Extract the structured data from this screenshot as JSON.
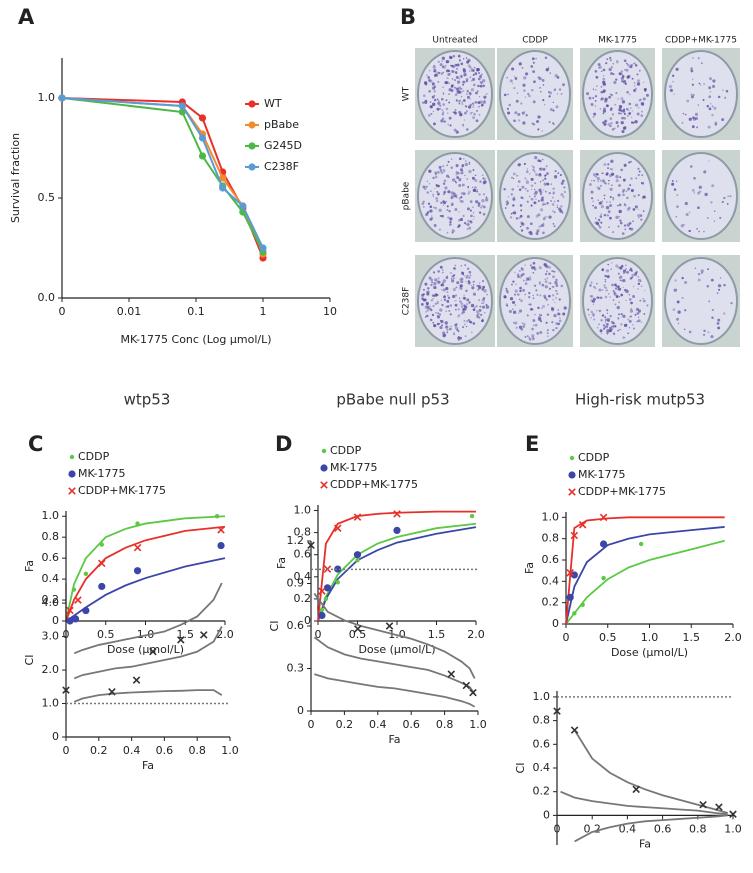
{
  "figure": {
    "panel_labels": [
      "A",
      "B",
      "C",
      "D",
      "E"
    ],
    "plates": {
      "columns": [
        "Untreated",
        "CDDP",
        "MK-1775",
        "CDDP+MK-1775"
      ],
      "rows": [
        "WT",
        "pBabe",
        "C238F"
      ]
    },
    "column_titles": [
      "wtp53",
      "pBabe null p53",
      "High-risk mutp53"
    ]
  },
  "chart_data": [
    {
      "type": "line",
      "xlabel": "MK-1775 Conc (Log μmol/L)",
      "ylabel": "Survival fraction",
      "log_x": true,
      "xlim": [
        0.001,
        10
      ],
      "ylim": [
        0,
        1.2
      ],
      "xticks": [
        {
          "value": 0.001,
          "label": "0"
        },
        0.01,
        0.1,
        1,
        10
      ],
      "yticks": [
        {
          "value": 0,
          "label": "0.0"
        },
        {
          "value": 0.5,
          "label": "0.5"
        },
        {
          "value": 1,
          "label": "1.0"
        }
      ],
      "legend": "upper right",
      "x": [
        0.001,
        0.0625,
        0.125,
        0.25,
        0.5,
        1
      ],
      "series": [
        {
          "name": "WT",
          "color": "#e8302a",
          "values": [
            1.0,
            0.98,
            0.9,
            0.63,
            0.45,
            0.2
          ]
        },
        {
          "name": "pBabe",
          "color": "#f28a30",
          "values": [
            1.0,
            0.96,
            0.82,
            0.6,
            0.46,
            0.22
          ]
        },
        {
          "name": "G245D",
          "color": "#4cb848",
          "values": [
            1.0,
            0.93,
            0.71,
            0.56,
            0.43,
            0.23
          ]
        },
        {
          "name": "C238F",
          "color": "#5b9bd5",
          "values": [
            1.0,
            0.96,
            0.8,
            0.55,
            0.46,
            0.25
          ]
        }
      ]
    },
    {
      "type": "scatter",
      "xlabel": "Dose (μmol/L)",
      "ylabel": "Fa",
      "xlim": [
        0,
        2
      ],
      "ylim": [
        0,
        1.05
      ],
      "xticks": [
        0,
        0.5,
        {
          "value": 1,
          "label": "1.0"
        },
        1.5,
        {
          "value": 2,
          "label": "2.0"
        }
      ],
      "yticks": [
        0,
        0.2,
        0.4,
        0.6,
        0.8,
        {
          "value": 1,
          "label": "1.0"
        }
      ],
      "legend": "upper left",
      "series": [
        {
          "name": "CDDP",
          "color": "#5cc843",
          "marker": "dot",
          "x": [
            0.1,
            0.25,
            0.45,
            0.9,
            1.9
          ],
          "values": [
            0.3,
            0.45,
            0.73,
            0.93,
            1.0
          ]
        },
        {
          "name": "MK-1775",
          "color": "#3b46a8",
          "marker": "circle",
          "x": [
            0.05,
            0.12,
            0.25,
            0.45,
            0.9,
            1.95
          ],
          "values": [
            0.0,
            0.02,
            0.1,
            0.33,
            0.48,
            0.72
          ]
        },
        {
          "name": "CDDP+MK-1775",
          "color": "#e8302a",
          "marker": "x",
          "x": [
            0.05,
            0.15,
            0.45,
            0.9,
            1.95
          ],
          "values": [
            0.1,
            0.2,
            0.55,
            0.7,
            0.87
          ]
        }
      ],
      "fits": [
        {
          "color": "#5cc843",
          "x": [
            0,
            0.1,
            0.25,
            0.5,
            0.75,
            1,
            1.5,
            2
          ],
          "values": [
            0,
            0.35,
            0.6,
            0.8,
            0.88,
            0.93,
            0.98,
            1.0
          ]
        },
        {
          "color": "#3b46a8",
          "x": [
            0,
            0.1,
            0.25,
            0.5,
            0.75,
            1,
            1.5,
            2
          ],
          "values": [
            0,
            0.05,
            0.13,
            0.25,
            0.34,
            0.41,
            0.52,
            0.6
          ]
        },
        {
          "color": "#e8302a",
          "x": [
            0,
            0.1,
            0.25,
            0.5,
            0.75,
            1,
            1.5,
            2
          ],
          "values": [
            0,
            0.2,
            0.4,
            0.6,
            0.7,
            0.77,
            0.86,
            0.9
          ]
        }
      ]
    },
    {
      "type": "scatter",
      "xlabel": "Fa",
      "ylabel": "CI",
      "xlim": [
        0,
        1
      ],
      "ylim": [
        0,
        4.6
      ],
      "xticks": [
        0,
        0.2,
        0.4,
        0.6,
        0.8,
        {
          "value": 1,
          "label": "1.0"
        }
      ],
      "yticks": [
        0,
        {
          "value": 1,
          "label": "1.0"
        },
        {
          "value": 2,
          "label": "2.0"
        },
        {
          "value": 3,
          "label": "3.0"
        },
        {
          "value": 4,
          "label": "4.0"
        }
      ],
      "reference_line": 1,
      "series": [
        {
          "color": "#333333",
          "marker": "x",
          "x": [
            0,
            0.28,
            0.43,
            0.53,
            0.7,
            0.84
          ],
          "values": [
            1.4,
            1.35,
            1.7,
            2.55,
            2.9,
            3.05
          ]
        }
      ],
      "fits": [
        {
          "color": "#777777",
          "x": [
            0.05,
            0.1,
            0.2,
            0.3,
            0.4,
            0.5,
            0.6,
            0.7,
            0.8,
            0.9,
            0.95
          ],
          "values": [
            2.5,
            2.6,
            2.75,
            2.85,
            2.95,
            3.05,
            3.15,
            3.35,
            3.6,
            4.1,
            4.6
          ]
        },
        {
          "color": "#777777",
          "x": [
            0.05,
            0.1,
            0.2,
            0.3,
            0.4,
            0.5,
            0.6,
            0.7,
            0.8,
            0.9,
            0.95
          ],
          "values": [
            1.75,
            1.85,
            1.95,
            2.05,
            2.1,
            2.2,
            2.3,
            2.4,
            2.55,
            2.85,
            3.3
          ]
        },
        {
          "color": "#777777",
          "x": [
            0.05,
            0.1,
            0.2,
            0.3,
            0.4,
            0.5,
            0.6,
            0.7,
            0.8,
            0.9,
            0.95
          ],
          "values": [
            1.05,
            1.15,
            1.25,
            1.3,
            1.33,
            1.35,
            1.37,
            1.38,
            1.4,
            1.4,
            1.25
          ]
        }
      ]
    },
    {
      "type": "scatter",
      "xlabel": "Dose (μmol/L)",
      "ylabel": "Fa",
      "xlim": [
        0,
        2
      ],
      "ylim": [
        0,
        1.05
      ],
      "xticks": [
        0,
        0.5,
        {
          "value": 1,
          "label": "1.0"
        },
        1.5,
        {
          "value": 2,
          "label": "2.0"
        }
      ],
      "yticks": [
        0,
        0.2,
        0.4,
        0.6,
        0.8,
        {
          "value": 1,
          "label": "1.0"
        }
      ],
      "legend": "upper left",
      "series": [
        {
          "name": "CDDP",
          "color": "#5cc843",
          "marker": "dot",
          "x": [
            0.05,
            0.1,
            0.25,
            0.5,
            1.0,
            1.95
          ],
          "values": [
            0.1,
            0.2,
            0.35,
            0.55,
            0.83,
            0.95
          ]
        },
        {
          "name": "MK-1775",
          "color": "#3b46a8",
          "marker": "circle",
          "x": [
            0.05,
            0.12,
            0.25,
            0.5,
            1.0
          ],
          "values": [
            0.05,
            0.3,
            0.47,
            0.6,
            0.82
          ]
        },
        {
          "name": "CDDP+MK-1775",
          "color": "#e8302a",
          "marker": "x",
          "x": [
            0.05,
            0.12,
            0.25,
            0.5,
            1.0
          ],
          "values": [
            0.27,
            0.47,
            0.84,
            0.94,
            0.97
          ]
        }
      ],
      "fits": [
        {
          "color": "#5cc843",
          "x": [
            0,
            0.1,
            0.25,
            0.5,
            0.75,
            1,
            1.5,
            2
          ],
          "values": [
            0,
            0.22,
            0.42,
            0.6,
            0.7,
            0.76,
            0.84,
            0.88
          ]
        },
        {
          "color": "#3b46a8",
          "x": [
            0,
            0.1,
            0.25,
            0.5,
            0.75,
            1,
            1.5,
            2
          ],
          "values": [
            0,
            0.2,
            0.38,
            0.55,
            0.64,
            0.71,
            0.79,
            0.85
          ]
        },
        {
          "color": "#e8302a",
          "x": [
            0,
            0.1,
            0.25,
            0.5,
            0.75,
            1,
            1.5,
            2
          ],
          "values": [
            0,
            0.7,
            0.88,
            0.95,
            0.97,
            0.98,
            0.99,
            0.99
          ]
        }
      ]
    },
    {
      "type": "scatter",
      "xlabel": "Fa",
      "ylabel": "CI",
      "xlim": [
        0,
        1
      ],
      "ylim": [
        0,
        1.2
      ],
      "xticks": [
        0,
        0.2,
        0.4,
        0.6,
        0.8,
        {
          "value": 1,
          "label": "1.0"
        }
      ],
      "yticks": [
        0,
        0.3,
        0.6,
        0.9,
        1.2
      ],
      "reference_line": 1,
      "series": [
        {
          "color": "#333333",
          "marker": "x",
          "x": [
            0,
            0.28,
            0.47,
            0.84,
            0.93,
            0.97
          ],
          "values": [
            1.17,
            0.58,
            0.6,
            0.26,
            0.18,
            0.13
          ]
        }
      ],
      "fits": [
        {
          "color": "#777777",
          "x": [
            0.02,
            0.1,
            0.2,
            0.3,
            0.4,
            0.5,
            0.6,
            0.7,
            0.8,
            0.9,
            0.95,
            0.98
          ],
          "values": [
            0.83,
            0.7,
            0.64,
            0.6,
            0.57,
            0.54,
            0.51,
            0.47,
            0.42,
            0.35,
            0.3,
            0.23
          ]
        },
        {
          "color": "#777777",
          "x": [
            0.02,
            0.1,
            0.2,
            0.3,
            0.4,
            0.5,
            0.6,
            0.7,
            0.8,
            0.9,
            0.95,
            0.98
          ],
          "values": [
            0.52,
            0.45,
            0.4,
            0.37,
            0.35,
            0.33,
            0.31,
            0.29,
            0.25,
            0.2,
            0.17,
            0.12
          ]
        },
        {
          "color": "#777777",
          "x": [
            0.02,
            0.1,
            0.2,
            0.3,
            0.4,
            0.5,
            0.6,
            0.7,
            0.8,
            0.9,
            0.95,
            0.98
          ],
          "values": [
            0.26,
            0.23,
            0.21,
            0.19,
            0.17,
            0.16,
            0.14,
            0.12,
            0.1,
            0.07,
            0.05,
            0.03
          ]
        }
      ]
    },
    {
      "type": "scatter",
      "xlabel": "Dose (μmol/L)",
      "ylabel": "Fa",
      "xlim": [
        0,
        2
      ],
      "ylim": [
        0,
        1.05
      ],
      "xticks": [
        0,
        0.5,
        {
          "value": 1,
          "label": "1.0"
        },
        1.5,
        {
          "value": 2,
          "label": "2.0"
        }
      ],
      "yticks": [
        0,
        0.2,
        0.4,
        0.6,
        0.8,
        {
          "value": 1,
          "label": "1.0"
        }
      ],
      "legend": "upper left",
      "series": [
        {
          "name": "CDDP",
          "color": "#5cc843",
          "marker": "dot",
          "x": [
            0.1,
            0.2,
            0.45,
            0.9
          ],
          "values": [
            0.1,
            0.18,
            0.43,
            0.75
          ]
        },
        {
          "name": "MK-1775",
          "color": "#3b46a8",
          "marker": "circle",
          "x": [
            0.05,
            0.1,
            0.45
          ],
          "values": [
            0.25,
            0.46,
            0.75
          ]
        },
        {
          "name": "CDDP+MK-1775",
          "color": "#e8302a",
          "marker": "x",
          "x": [
            0.05,
            0.1,
            0.2,
            0.45
          ],
          "values": [
            0.48,
            0.83,
            0.93,
            1.0
          ]
        }
      ],
      "fits": [
        {
          "color": "#5cc843",
          "x": [
            0,
            0.1,
            0.25,
            0.5,
            0.75,
            1,
            1.5,
            1.9
          ],
          "values": [
            0,
            0.1,
            0.25,
            0.42,
            0.53,
            0.6,
            0.7,
            0.78
          ]
        },
        {
          "color": "#3b46a8",
          "x": [
            0,
            0.1,
            0.25,
            0.5,
            0.75,
            1,
            1.5,
            1.9
          ],
          "values": [
            0,
            0.35,
            0.58,
            0.74,
            0.8,
            0.84,
            0.88,
            0.91
          ]
        },
        {
          "color": "#e8302a",
          "x": [
            0,
            0.1,
            0.25,
            0.5,
            0.75,
            1,
            1.5,
            1.9
          ],
          "values": [
            0,
            0.9,
            0.97,
            0.99,
            1,
            1,
            1,
            1
          ]
        }
      ]
    },
    {
      "type": "scatter",
      "xlabel": "Fa",
      "ylabel": "CI",
      "xlim": [
        0,
        1
      ],
      "ylim": [
        -0.25,
        1.05
      ],
      "xticks": [
        0,
        0.2,
        0.4,
        0.6,
        0.8,
        {
          "value": 1,
          "label": "1.0"
        }
      ],
      "yticks": [
        0,
        0.2,
        0.4,
        0.6,
        0.8,
        {
          "value": 1,
          "label": "1.0"
        }
      ],
      "reference_line": 1,
      "series": [
        {
          "color": "#333333",
          "marker": "x",
          "x": [
            0,
            0.1,
            0.45,
            0.83,
            0.92,
            1.0
          ],
          "values": [
            0.88,
            0.72,
            0.22,
            0.09,
            0.07,
            0.01
          ]
        }
      ],
      "fits": [
        {
          "color": "#777777",
          "x": [
            0.1,
            0.2,
            0.3,
            0.4,
            0.5,
            0.6,
            0.7,
            0.8,
            0.9,
            0.97
          ],
          "values": [
            0.72,
            0.48,
            0.36,
            0.28,
            0.22,
            0.17,
            0.13,
            0.09,
            0.05,
            0.02
          ]
        },
        {
          "color": "#777777",
          "x": [
            0.02,
            0.1,
            0.2,
            0.3,
            0.4,
            0.5,
            0.6,
            0.7,
            0.8,
            0.9,
            0.97
          ],
          "values": [
            0.2,
            0.15,
            0.12,
            0.1,
            0.08,
            0.07,
            0.06,
            0.05,
            0.04,
            0.02,
            0.01
          ]
        },
        {
          "color": "#777777",
          "x": [
            0.1,
            0.2,
            0.3,
            0.4,
            0.5,
            0.6,
            0.7,
            0.8,
            0.9,
            0.97
          ],
          "values": [
            -0.22,
            -0.14,
            -0.1,
            -0.07,
            -0.05,
            -0.04,
            -0.03,
            -0.02,
            -0.01,
            0
          ]
        }
      ]
    }
  ]
}
